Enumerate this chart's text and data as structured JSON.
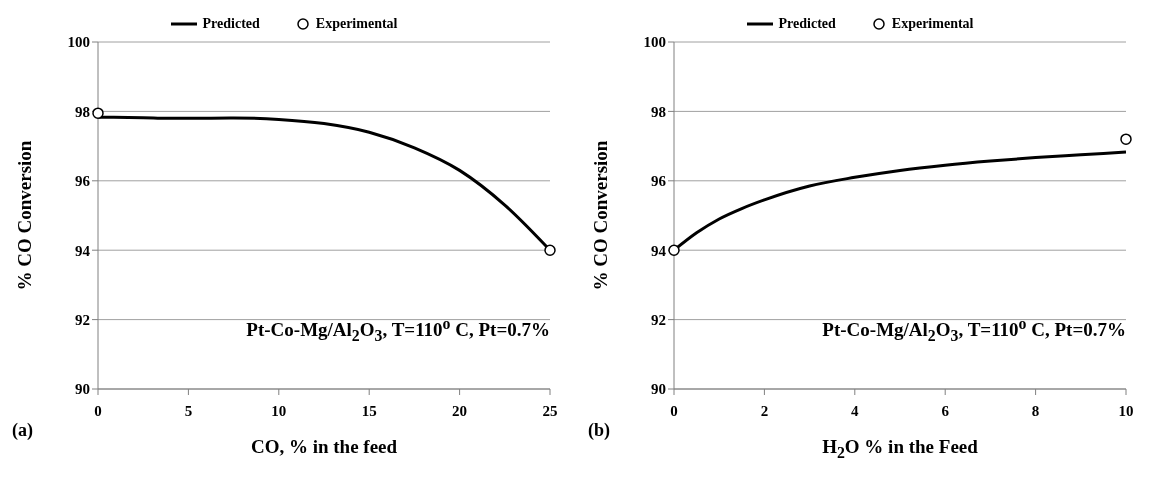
{
  "chart_data": [
    {
      "type": "line",
      "xlabel": "CO, % in the feed",
      "ylabel": "% CO Conversion",
      "annotations": [
        "(a)",
        "Pt-Co-Mg/Al$_{2}$O$_{3}$, T=110$^{o}$ C, Pt=0.7%"
      ],
      "xlim": [
        0,
        25
      ],
      "xticks": [
        0,
        5,
        10,
        15,
        20,
        25
      ],
      "ylim": [
        90,
        100
      ],
      "yticks": [
        90,
        92,
        94,
        96,
        98,
        100
      ],
      "grid": "y",
      "legend": "top",
      "series": [
        {
          "name": "Predicted",
          "marker": "none",
          "color": "#000000",
          "x": [
            0,
            2.5,
            3.8,
            5,
            7.5,
            10,
            12.5,
            15,
            17.5,
            20,
            22.5,
            25
          ],
          "values": [
            97.83,
            97.82,
            97.8,
            97.8,
            97.81,
            97.77,
            97.65,
            97.4,
            96.95,
            96.3,
            95.3,
            94.0
          ]
        },
        {
          "name": "Experimental",
          "type": "scatter",
          "marker": "circle",
          "color": "#000000",
          "x": [
            0,
            25
          ],
          "values": [
            97.95,
            94.0
          ]
        }
      ]
    },
    {
      "type": "line",
      "xlabel": "H$_{2}$O % in the Feed",
      "ylabel": "% CO Conversion",
      "annotations": [
        "(b)",
        "Pt-Co-Mg/Al$_{2}$O$_{3}$, T=110$^{o}$ C, Pt=0.7%"
      ],
      "xlim": [
        0,
        10
      ],
      "xticks": [
        0,
        2,
        4,
        6,
        8,
        10
      ],
      "ylim": [
        90,
        100
      ],
      "yticks": [
        90,
        92,
        94,
        96,
        98,
        100
      ],
      "grid": "y",
      "legend": "top",
      "series": [
        {
          "name": "Predicted",
          "marker": "none",
          "color": "#000000",
          "x": [
            0,
            0.5,
            1,
            1.5,
            2,
            3,
            4,
            5,
            6,
            7,
            8,
            9,
            10
          ],
          "values": [
            94.0,
            94.5,
            94.9,
            95.2,
            95.45,
            95.85,
            96.1,
            96.3,
            96.45,
            96.57,
            96.67,
            96.75,
            96.83
          ]
        },
        {
          "name": "Experimental",
          "type": "scatter",
          "marker": "circle",
          "color": "#000000",
          "x": [
            0,
            10
          ],
          "values": [
            94.0,
            97.2
          ]
        }
      ]
    }
  ]
}
